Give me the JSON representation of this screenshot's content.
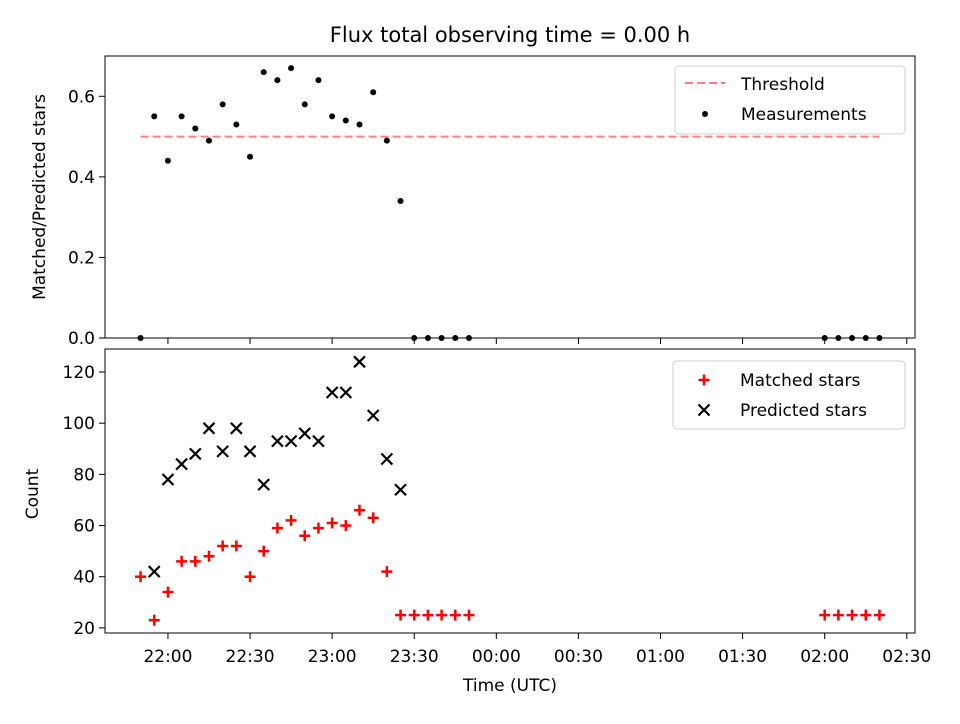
{
  "chart_data": [
    {
      "type": "scatter",
      "title": "Flux total observing time = 0.00 h",
      "xlabel": "",
      "ylabel": "Matched/Predicted stars",
      "ylim": [
        0.0,
        0.7
      ],
      "yticks": [
        "0.0",
        "0.2",
        "0.4",
        "0.6"
      ],
      "xlim": [
        "21:37",
        "02:33"
      ],
      "grid": false,
      "legend_position": "top-right",
      "series": [
        {
          "name": "Threshold",
          "kind": "dashed-line",
          "color": "#ff7f7f",
          "x": [
            "21:50",
            "02:20"
          ],
          "values": [
            0.5,
            0.5
          ]
        },
        {
          "name": "Measurements",
          "kind": "dot",
          "color": "#000000",
          "x": [
            "21:50",
            "21:55",
            "22:00",
            "22:05",
            "22:10",
            "22:15",
            "22:20",
            "22:25",
            "22:30",
            "22:35",
            "22:40",
            "22:45",
            "22:50",
            "22:55",
            "23:00",
            "23:05",
            "23:10",
            "23:15",
            "23:20",
            "23:25",
            "23:30",
            "23:35",
            "23:40",
            "23:45",
            "23:50",
            "02:00",
            "02:05",
            "02:10",
            "02:15",
            "02:20"
          ],
          "values": [
            0.0,
            0.55,
            0.44,
            0.55,
            0.52,
            0.49,
            0.58,
            0.53,
            0.45,
            0.66,
            0.64,
            0.67,
            0.58,
            0.64,
            0.55,
            0.54,
            0.53,
            0.61,
            0.49,
            0.34,
            0.0,
            0.0,
            0.0,
            0.0,
            0.0,
            0.0,
            0.0,
            0.0,
            0.0,
            0.0
          ]
        }
      ]
    },
    {
      "type": "scatter",
      "title": "",
      "xlabel": "Time (UTC)",
      "ylabel": "Count",
      "ylim": [
        18,
        129
      ],
      "yticks": [
        "20",
        "40",
        "60",
        "80",
        "100",
        "120"
      ],
      "xlim": [
        "21:37",
        "02:33"
      ],
      "xticks": [
        "22:00",
        "22:30",
        "23:00",
        "23:30",
        "00:00",
        "00:30",
        "01:00",
        "01:30",
        "02:00",
        "02:30"
      ],
      "grid": false,
      "legend_position": "top-right",
      "series": [
        {
          "name": "Matched stars",
          "kind": "plus",
          "color": "#ff0000",
          "x": [
            "21:50",
            "21:55",
            "22:00",
            "22:05",
            "22:10",
            "22:15",
            "22:20",
            "22:25",
            "22:30",
            "22:35",
            "22:40",
            "22:45",
            "22:50",
            "22:55",
            "23:00",
            "23:05",
            "23:10",
            "23:15",
            "23:20",
            "23:25",
            "23:30",
            "23:35",
            "23:40",
            "23:45",
            "23:50",
            "02:00",
            "02:05",
            "02:10",
            "02:15",
            "02:20"
          ],
          "values": [
            40,
            23,
            34,
            46,
            46,
            48,
            52,
            52,
            40,
            50,
            59,
            62,
            56,
            59,
            61,
            60,
            66,
            63,
            42,
            25,
            25,
            25,
            25,
            25,
            25,
            25,
            25,
            25,
            25,
            25
          ]
        },
        {
          "name": "Predicted stars",
          "kind": "x",
          "color": "#000000",
          "x": [
            "21:55",
            "22:00",
            "22:05",
            "22:10",
            "22:15",
            "22:20",
            "22:25",
            "22:30",
            "22:35",
            "22:40",
            "22:45",
            "22:50",
            "22:55",
            "23:00",
            "23:05",
            "23:10",
            "23:15",
            "23:20",
            "23:25"
          ],
          "values": [
            42,
            78,
            84,
            88,
            98,
            89,
            98,
            89,
            76,
            93,
            93,
            96,
            93,
            112,
            112,
            124,
            103,
            86,
            74
          ]
        }
      ]
    }
  ]
}
